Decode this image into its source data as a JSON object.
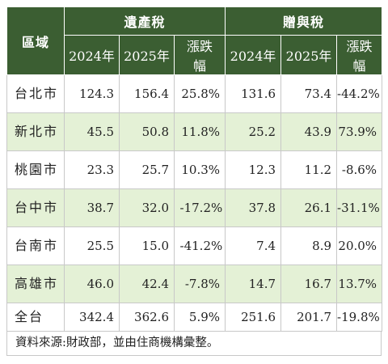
{
  "header": {
    "region_label": "區域",
    "groups": [
      "遺產稅",
      "贈與稅"
    ],
    "sub": [
      "2024年",
      "2025年",
      "漲跌幅",
      "2024年",
      "2025年",
      "漲跌幅"
    ]
  },
  "rows": [
    {
      "name": "台北市",
      "cells": [
        "124.3",
        "156.4",
        "25.8%",
        "131.6",
        "73.4",
        "-44.2%"
      ]
    },
    {
      "name": "新北市",
      "cells": [
        "45.5",
        "50.8",
        "11.8%",
        "25.2",
        "43.9",
        "73.9%"
      ]
    },
    {
      "name": "桃園市",
      "cells": [
        "23.3",
        "25.7",
        "10.3%",
        "12.3",
        "11.2",
        "-8.6%"
      ]
    },
    {
      "name": "台中市",
      "cells": [
        "38.7",
        "32.0",
        "-17.2%",
        "37.8",
        "26.1",
        "-31.1%"
      ]
    },
    {
      "name": "台南市",
      "cells": [
        "25.5",
        "15.0",
        "-41.2%",
        "7.4",
        "8.9",
        "20.0%"
      ]
    },
    {
      "name": "高雄市",
      "cells": [
        "46.0",
        "42.4",
        "-7.8%",
        "14.7",
        "16.7",
        "13.7%"
      ]
    },
    {
      "name": "全台",
      "cells": [
        "342.4",
        "362.6",
        "5.9%",
        "251.6",
        "201.7",
        "-19.8%"
      ]
    }
  ],
  "source": "資料來源:財政部，並由住商機構彙整。",
  "colors": {
    "header_bg": "#3b5e32",
    "alt_row_bg": "#e4f1d6"
  }
}
